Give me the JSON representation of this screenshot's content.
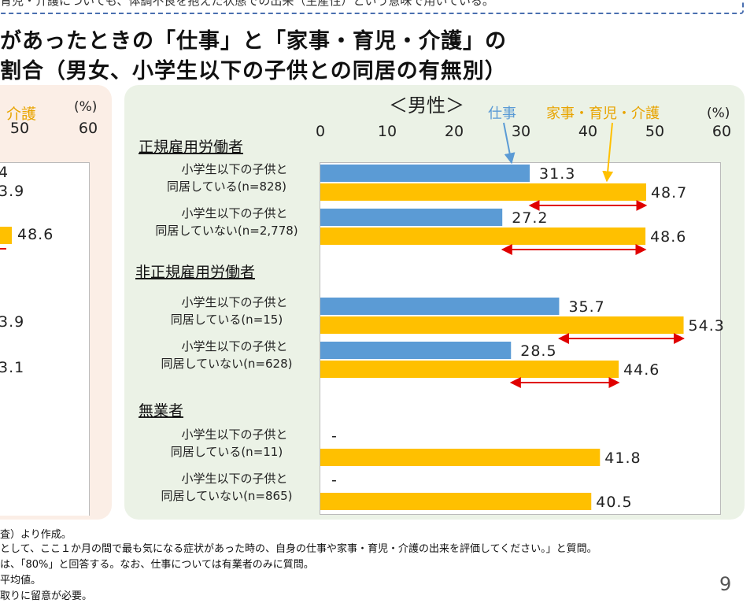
{
  "top_note": "育児・介護についても、体調不良を抱えた状態での出来（生産性）という意味で用いている。",
  "title_line1": "があったときの「仕事」と「家事・育児・介護」の",
  "title_line2": "割合（男女、小学生以下の子供との同居の有無別）",
  "left_panel": {
    "legend_care": "介護",
    "unit": "(%)",
    "ticks": [
      "50",
      "60"
    ],
    "fragments": [
      "4",
      "3.9",
      "48.6",
      "3.9",
      "3.1"
    ]
  },
  "chart_data": {
    "type": "bar",
    "title": "＜男性＞",
    "unit": "(%)",
    "xlim": [
      0,
      60
    ],
    "ticks": [
      0,
      10,
      20,
      30,
      40,
      50,
      60
    ],
    "legend": {
      "work": "仕事",
      "housework": "家事・育児・介護"
    },
    "colors": {
      "work": "#5b9bd5",
      "housework": "#ffc000",
      "arrow": "#e00000"
    },
    "groups": [
      {
        "name": "正規雇用労働者",
        "categories": [
          {
            "label1": "小学生以下の子供と",
            "label2": "同居している(n=828)",
            "work": 31.3,
            "housework": 48.7
          },
          {
            "label1": "小学生以下の子供と",
            "label2": "同居していない(n=2,778)",
            "work": 27.2,
            "housework": 48.6
          }
        ]
      },
      {
        "name": "非正規雇用労働者",
        "categories": [
          {
            "label1": "小学生以下の子供と",
            "label2": "同居している(n=15)",
            "work": 35.7,
            "housework": 54.3
          },
          {
            "label1": "小学生以下の子供と",
            "label2": "同居していない(n=628)",
            "work": 28.5,
            "housework": 44.6
          }
        ]
      },
      {
        "name": "無業者",
        "categories": [
          {
            "label1": "小学生以下の子供と",
            "label2": "同居している(n=11)",
            "work": null,
            "work_text": "-",
            "housework": 41.8
          },
          {
            "label1": "小学生以下の子供と",
            "label2": "同居していない(n=865)",
            "work": null,
            "work_text": "-",
            "housework": 40.5
          }
        ]
      }
    ]
  },
  "footnotes": [
    "査）より作成。",
    "として、ここ１か月の間で最も気になる症状があった時の、自身の仕事や家事・育児・介護の出来を評価してください。」と質問。",
    "は、「80%」と回答する。なお、仕事については有業者のみに質問。",
    "平均値。",
    "取りに留意が必要。"
  ],
  "page_number": "9"
}
